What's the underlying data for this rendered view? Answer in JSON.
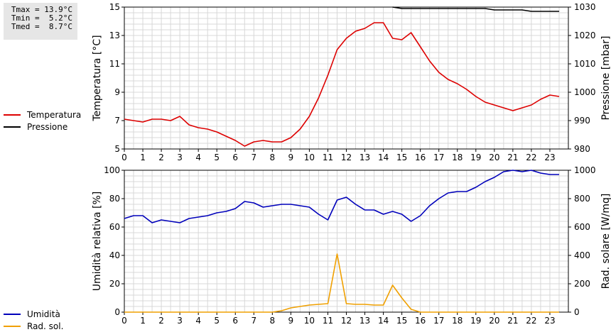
{
  "stats": {
    "tmax": "Tmax = 13.9°C",
    "tmin": "Tmin =  5.2°C",
    "tmed": "Tmed =  8.7°C"
  },
  "legend_top": [
    {
      "label": "Temperatura",
      "color": "#dd0000"
    },
    {
      "label": "Pressione",
      "color": "#000000"
    }
  ],
  "legend_bottom": [
    {
      "label": "Umidità",
      "color": "#0000bb"
    },
    {
      "label": "Rad. sol.",
      "color": "#f0a000"
    }
  ],
  "chart_data": [
    {
      "type": "line",
      "xlim": [
        0,
        24
      ],
      "x_ticks": [
        "0",
        "1",
        "2",
        "3",
        "4",
        "5",
        "6",
        "7",
        "8",
        "9",
        "10",
        "11",
        "12",
        "13",
        "14",
        "15",
        "16",
        "17",
        "18",
        "19",
        "20",
        "21",
        "22",
        "23"
      ],
      "ylabel": "Temperatura [°C]",
      "ylim": [
        5,
        15
      ],
      "y_ticks": [
        "5",
        "7",
        "9",
        "11",
        "13",
        "15"
      ],
      "y2label": "Pressione [mbar]",
      "y2lim": [
        980,
        1030
      ],
      "y2_ticks": [
        "980",
        "990",
        "1000",
        "1010",
        "1020",
        "1030"
      ],
      "grid": true,
      "series": [
        {
          "name": "Temperatura",
          "color": "#dd0000",
          "axis": "left",
          "x": [
            0,
            0.5,
            1,
            1.5,
            2,
            2.5,
            3,
            3.5,
            4,
            4.5,
            5,
            5.5,
            6,
            6.5,
            7,
            7.5,
            8,
            8.5,
            9,
            9.5,
            10,
            10.5,
            11,
            11.5,
            12,
            12.5,
            13,
            13.5,
            14,
            14.5,
            15,
            15.5,
            16,
            16.5,
            17,
            17.5,
            18,
            18.5,
            19,
            19.5,
            20,
            20.5,
            21,
            21.5,
            22,
            22.5,
            23,
            23.5
          ],
          "y": [
            7.1,
            7.0,
            6.9,
            7.1,
            7.1,
            7.0,
            7.3,
            6.7,
            6.5,
            6.4,
            6.2,
            5.9,
            5.6,
            5.2,
            5.5,
            5.6,
            5.5,
            5.5,
            5.8,
            6.4,
            7.3,
            8.6,
            10.2,
            12.0,
            12.8,
            13.3,
            13.5,
            13.9,
            13.9,
            12.8,
            12.7,
            13.2,
            12.2,
            11.2,
            10.4,
            9.9,
            9.6,
            9.2,
            8.7,
            8.3,
            8.1,
            7.9,
            7.7,
            7.9,
            8.1,
            8.5,
            8.8,
            8.7
          ]
        },
        {
          "name": "Pressione",
          "color": "#000000",
          "axis": "right",
          "x": [
            14.5,
            15,
            15.5,
            16,
            16.5,
            17,
            17.5,
            18,
            18.5,
            19,
            19.5,
            20,
            20.5,
            21,
            21.5,
            22,
            22.5,
            23,
            23.5
          ],
          "y": [
            1030,
            1029.5,
            1029.5,
            1029.5,
            1029.5,
            1029.5,
            1029.5,
            1029.5,
            1029.5,
            1029.5,
            1029.5,
            1029,
            1029,
            1029,
            1029,
            1028.5,
            1028.5,
            1028.5,
            1028.5
          ]
        }
      ]
    },
    {
      "type": "line",
      "xlim": [
        0,
        24
      ],
      "x_ticks": [
        "0",
        "1",
        "2",
        "3",
        "4",
        "5",
        "6",
        "7",
        "8",
        "9",
        "10",
        "11",
        "12",
        "13",
        "14",
        "15",
        "16",
        "17",
        "18",
        "19",
        "20",
        "21",
        "22",
        "23"
      ],
      "ylabel": "Umidità relativa [%]",
      "ylim": [
        0,
        100
      ],
      "y_ticks": [
        "0",
        "20",
        "40",
        "60",
        "80",
        "100"
      ],
      "y2label": "Rad. solare [W/mq]",
      "y2lim": [
        0,
        1000
      ],
      "y2_ticks": [
        "0",
        "200",
        "400",
        "600",
        "800",
        "1000"
      ],
      "grid": true,
      "series": [
        {
          "name": "Umidità",
          "color": "#0000bb",
          "axis": "left",
          "x": [
            0,
            0.5,
            1,
            1.5,
            2,
            2.5,
            3,
            3.5,
            4,
            4.5,
            5,
            5.5,
            6,
            6.5,
            7,
            7.5,
            8,
            8.5,
            9,
            9.5,
            10,
            10.5,
            11,
            11.5,
            12,
            12.5,
            13,
            13.5,
            14,
            14.5,
            15,
            15.5,
            16,
            16.5,
            17,
            17.5,
            18,
            18.5,
            19,
            19.5,
            20,
            20.5,
            21,
            21.5,
            22,
            22.5,
            23,
            23.5
          ],
          "y": [
            66,
            68,
            68,
            63,
            65,
            64,
            63,
            66,
            67,
            68,
            70,
            71,
            73,
            78,
            77,
            74,
            75,
            76,
            76,
            75,
            74,
            69,
            65,
            79,
            81,
            76,
            72,
            72,
            69,
            71,
            69,
            64,
            68,
            75,
            80,
            84,
            85,
            85,
            88,
            92,
            95,
            99,
            100,
            99,
            100,
            98,
            97,
            97
          ]
        },
        {
          "name": "Rad. sol.",
          "color": "#f0a000",
          "axis": "right",
          "x": [
            0,
            0.5,
            1,
            1.5,
            2,
            2.5,
            3,
            3.5,
            4,
            4.5,
            5,
            5.5,
            6,
            6.5,
            7,
            7.5,
            8,
            8.5,
            9,
            9.5,
            10,
            10.5,
            11,
            11.5,
            12,
            12.5,
            13,
            13.5,
            14,
            14.5,
            15,
            15.5,
            16,
            16.5,
            17,
            17.5,
            18,
            18.5,
            19,
            19.5,
            20,
            20.5,
            21,
            21.5,
            22,
            22.5,
            23,
            23.5
          ],
          "y": [
            0,
            0,
            0,
            0,
            0,
            0,
            0,
            0,
            0,
            0,
            0,
            0,
            0,
            0,
            0,
            0,
            0,
            10,
            30,
            40,
            50,
            55,
            60,
            410,
            60,
            55,
            55,
            50,
            50,
            190,
            100,
            20,
            0,
            0,
            0,
            0,
            0,
            0,
            0,
            0,
            0,
            0,
            0,
            0,
            0,
            0,
            0,
            0
          ]
        }
      ]
    }
  ]
}
